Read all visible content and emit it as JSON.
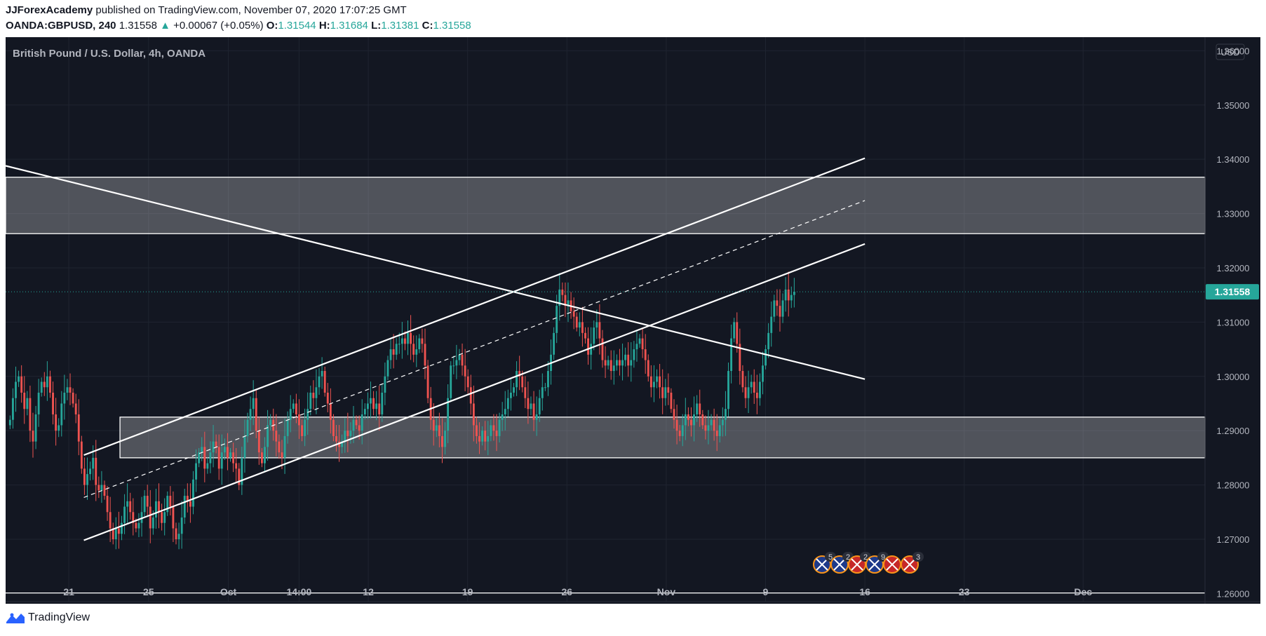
{
  "header": {
    "author": "JJForexAcademy",
    "published_on": " published on TradingView.com, November 07, 2020 17:07:25 GMT",
    "symbol": "OANDA:GBPUSD, 240",
    "last": "1.31558",
    "change_arrow": "▲",
    "change": "+0.00067 (+0.05%)",
    "o_label": "O:",
    "o_value": "1.31544",
    "h_label": "H:",
    "h_value": "1.31684",
    "l_label": "L:",
    "l_value": "1.31381",
    "c_label": "C:",
    "c_value": "1.31558"
  },
  "footer": {
    "brand": "TradingView"
  },
  "colors": {
    "background": "#131722",
    "grid": "#1f2430",
    "axis_text": "#b2b5be",
    "up": "#26a69a",
    "down": "#ef5350",
    "price_tag": "#26a69a",
    "drawing": "#ffffff"
  },
  "chart_data": {
    "type": "candlestick",
    "title": "British Pound / U.S. Dollar, 4h, OANDA",
    "currency": "USD",
    "xlabel": "",
    "ylabel": "",
    "ylim": [
      1.2585,
      1.3625
    ],
    "y_ticks": [
      1.36,
      1.35,
      1.34,
      1.33,
      1.32,
      1.31,
      1.3,
      1.29,
      1.28,
      1.27,
      1.26
    ],
    "y_tick_labels": [
      "1.36000",
      "1.35000",
      "1.34000",
      "1.33000",
      "1.32000",
      "1.31000",
      "1.30000",
      "1.29000",
      "1.28000",
      "1.27000",
      "1.26000"
    ],
    "x_range": [
      -1.2,
      78.5
    ],
    "x_ticks": [
      {
        "label": "21",
        "day": 3
      },
      {
        "label": "25",
        "day": 8.3
      },
      {
        "label": "Oct",
        "day": 13.6
      },
      {
        "label": "14:00",
        "day": 18.3
      },
      {
        "label": "12",
        "day": 22.9
      },
      {
        "label": "19",
        "day": 29.5
      },
      {
        "label": "26",
        "day": 36.1
      },
      {
        "label": "Nov",
        "day": 42.7
      },
      {
        "label": "9",
        "day": 49.3
      },
      {
        "label": "16",
        "day": 55.9
      },
      {
        "label": "23",
        "day": 62.5
      },
      {
        "label": "Dec",
        "day": 70.4
      }
    ],
    "last_price": 1.31558,
    "last_price_label": "1.31558",
    "candles_start": {
      "day": -1.0,
      "open": 1.291
    },
    "closes": [
      1.292,
      1.296,
      1.299,
      1.3,
      1.297,
      1.294,
      1.296,
      1.29,
      1.288,
      1.293,
      1.297,
      1.299,
      1.298,
      1.3,
      1.297,
      1.293,
      1.29,
      1.291,
      1.295,
      1.297,
      1.298,
      1.297,
      1.295,
      1.293,
      1.288,
      1.283,
      1.28,
      1.282,
      1.283,
      1.285,
      1.28,
      1.279,
      1.28,
      1.278,
      1.275,
      1.272,
      1.27,
      1.272,
      1.271,
      1.273,
      1.276,
      1.277,
      1.275,
      1.273,
      1.272,
      1.273,
      1.275,
      1.278,
      1.276,
      1.272,
      1.274,
      1.277,
      1.275,
      1.273,
      1.275,
      1.278,
      1.276,
      1.272,
      1.27,
      1.271,
      1.274,
      1.278,
      1.277,
      1.276,
      1.281,
      1.284,
      1.286,
      1.287,
      1.283,
      1.284,
      1.286,
      1.288,
      1.287,
      1.283,
      1.286,
      1.287,
      1.285,
      1.286,
      1.284,
      1.283,
      1.28,
      1.285,
      1.289,
      1.292,
      1.294,
      1.296,
      1.29,
      1.286,
      1.284,
      1.287,
      1.291,
      1.292,
      1.29,
      1.288,
      1.286,
      1.285,
      1.289,
      1.292,
      1.294,
      1.295,
      1.293,
      1.291,
      1.289,
      1.292,
      1.294,
      1.297,
      1.296,
      1.298,
      1.3,
      1.301,
      1.297,
      1.295,
      1.292,
      1.289,
      1.288,
      1.287,
      1.288,
      1.29,
      1.289,
      1.29,
      1.292,
      1.291,
      1.29,
      1.293,
      1.294,
      1.295,
      1.296,
      1.294,
      1.295,
      1.293,
      1.297,
      1.3,
      1.303,
      1.305,
      1.304,
      1.306,
      1.306,
      1.307,
      1.306,
      1.308,
      1.306,
      1.304,
      1.305,
      1.307,
      1.306,
      1.302,
      1.296,
      1.292,
      1.29,
      1.291,
      1.289,
      1.287,
      1.29,
      1.296,
      1.302,
      1.302,
      1.303,
      1.304,
      1.302,
      1.3,
      1.298,
      1.295,
      1.291,
      1.289,
      1.288,
      1.29,
      1.288,
      1.289,
      1.291,
      1.29,
      1.289,
      1.292,
      1.293,
      1.294,
      1.296,
      1.297,
      1.298,
      1.301,
      1.3,
      1.298,
      1.296,
      1.294,
      1.295,
      1.292,
      1.293,
      1.296,
      1.298,
      1.298,
      1.301,
      1.304,
      1.308,
      1.313,
      1.316,
      1.315,
      1.313,
      1.314,
      1.312,
      1.311,
      1.309,
      1.31,
      1.308,
      1.307,
      1.304,
      1.306,
      1.309,
      1.31,
      1.307,
      1.303,
      1.302,
      1.303,
      1.301,
      1.302,
      1.303,
      1.302,
      1.303,
      1.304,
      1.302,
      1.303,
      1.305,
      1.306,
      1.307,
      1.305,
      1.303,
      1.3,
      1.298,
      1.299,
      1.3,
      1.298,
      1.296,
      1.298,
      1.297,
      1.294,
      1.292,
      1.29,
      1.289,
      1.291,
      1.293,
      1.292,
      1.291,
      1.293,
      1.295,
      1.293,
      1.291,
      1.29,
      1.291,
      1.292,
      1.29,
      1.289,
      1.291,
      1.292,
      1.294,
      1.301,
      1.307,
      1.31,
      1.306,
      1.301,
      1.298,
      1.296,
      1.298,
      1.299,
      1.297,
      1.296,
      1.299,
      1.302,
      1.305,
      1.308,
      1.311,
      1.314,
      1.313,
      1.311,
      1.314,
      1.316,
      1.314,
      1.315,
      1.3156
    ]
  },
  "drawings": {
    "resistance_zone": {
      "x": [
        -1.2,
        78.5
      ],
      "y": [
        1.3263,
        1.3367
      ]
    },
    "support_zone": {
      "x": [
        6.4,
        78.5
      ],
      "y": [
        1.285,
        1.2925
      ]
    },
    "descending_trendline": {
      "x1": -1.2,
      "y1": 1.3388,
      "x2": 55.9,
      "y2": 1.2995
    },
    "channel_upper": {
      "x1": 4.0,
      "y1": 1.2855,
      "x2": 55.9,
      "y2": 1.3402
    },
    "channel_mid": {
      "x1": 4.0,
      "y1": 1.2777,
      "x2": 55.9,
      "y2": 1.3324,
      "dashed": true
    },
    "channel_lower": {
      "x1": 4.0,
      "y1": 1.2698,
      "x2": 55.9,
      "y2": 1.3244
    },
    "bottom_line": 1.2601
  },
  "event_markers": [
    {
      "flag": "GB",
      "count": "5"
    },
    {
      "flag": "GB",
      "count": "2"
    },
    {
      "flag": "US",
      "count": "2"
    },
    {
      "flag": "GB",
      "count": "9"
    },
    {
      "flag": "US",
      "count": ""
    },
    {
      "flag": "US",
      "count": "3"
    }
  ]
}
